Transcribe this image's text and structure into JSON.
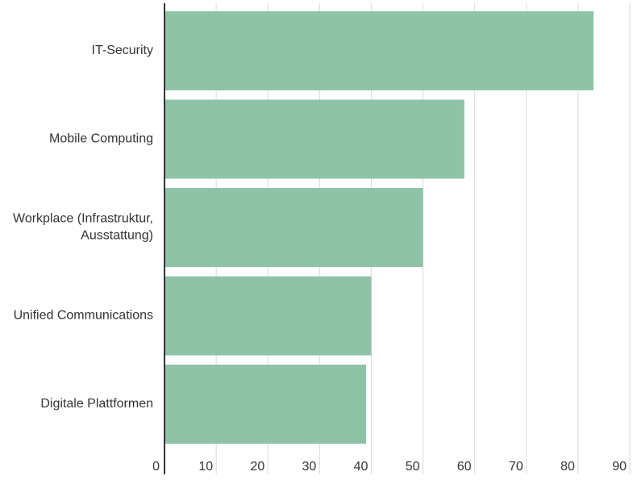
{
  "chart_data": {
    "type": "bar",
    "orientation": "horizontal",
    "categories": [
      [
        "IT-Security"
      ],
      [
        "Mobile Computing"
      ],
      [
        "Workplace (Infrastruktur,",
        "Ausstattung)"
      ],
      [
        "Unified Communications"
      ],
      [
        "Digitale Plattformen"
      ]
    ],
    "values": [
      83,
      58,
      50,
      40,
      39
    ],
    "xlim": [
      0,
      90
    ],
    "xticks": [
      0,
      10,
      20,
      30,
      40,
      50,
      60,
      70,
      80,
      90
    ],
    "grid": true,
    "bar_color": "#8ec3a7",
    "grid_color": "#d9d9d9",
    "axis_color": "#333333"
  }
}
